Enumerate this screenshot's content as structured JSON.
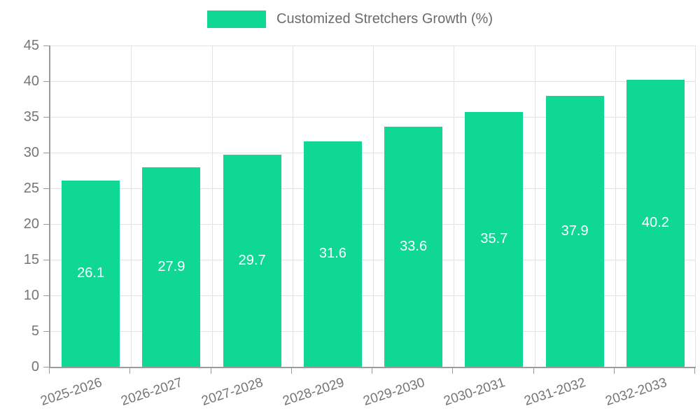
{
  "legend": {
    "label": "Customized Stretchers Growth (%)"
  },
  "colors": {
    "bar": "#0ed894",
    "axis": "#9b9b9b",
    "gridline": "#e3e3e3",
    "tick_text": "#757575",
    "value_text": "#ffffff"
  },
  "chart_data": {
    "type": "bar",
    "title": "Customized Stretchers Growth (%)",
    "categories": [
      "2025-2026",
      "2026-2027",
      "2027-2028",
      "2028-2029",
      "2029-2030",
      "2030-2031",
      "2031-2032",
      "2032-2033"
    ],
    "values": [
      26.1,
      27.9,
      29.7,
      31.6,
      33.6,
      35.7,
      37.9,
      40.2
    ],
    "xlabel": "",
    "ylabel": "",
    "ylim": [
      0,
      45
    ],
    "y_ticks": [
      0,
      5,
      10,
      15,
      20,
      25,
      30,
      35,
      40,
      45
    ],
    "grid": true,
    "legend_position": "top-center",
    "value_label_position": "inside-center"
  }
}
